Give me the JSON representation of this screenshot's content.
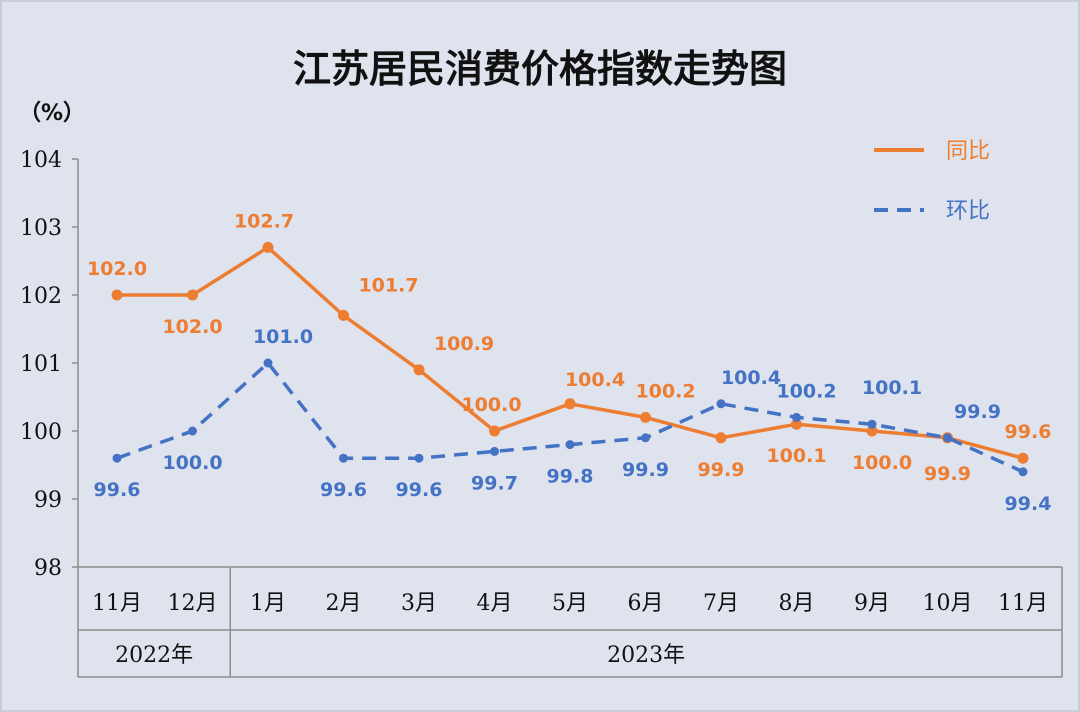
{
  "chart_data": {
    "type": "line",
    "title": "江苏居民消费价格指数走势图",
    "unit_label": "（%）",
    "categories": [
      "11月",
      "12月",
      "1月",
      "2月",
      "3月",
      "4月",
      "5月",
      "6月",
      "7月",
      "8月",
      "9月",
      "10月",
      "11月"
    ],
    "year_groups": [
      {
        "label": "2022年",
        "count": 2
      },
      {
        "label": "2023年",
        "count": 11
      }
    ],
    "ylim": [
      98,
      104
    ],
    "yticks": [
      98,
      99,
      100,
      101,
      102,
      103,
      104
    ],
    "grid": false,
    "legend_position": "top-right",
    "series": [
      {
        "name": "同比",
        "color": "#ed7d31",
        "style": "solid",
        "values": [
          102.0,
          102.0,
          102.7,
          101.7,
          100.9,
          100.0,
          100.4,
          100.2,
          99.9,
          100.1,
          100.0,
          99.9,
          99.6
        ],
        "labels": [
          "102.0",
          "102.0",
          "102.7",
          "101.7",
          "100.9",
          "100.0",
          "100.4",
          "100.2",
          "99.9",
          "100.1",
          "100.0",
          "99.9",
          "99.6"
        ]
      },
      {
        "name": "环比",
        "color": "#4472c4",
        "style": "dashed",
        "values": [
          99.6,
          100.0,
          101.0,
          99.6,
          99.6,
          99.7,
          99.8,
          99.9,
          100.4,
          100.2,
          100.1,
          99.9,
          99.4
        ],
        "labels": [
          "99.6",
          "100.0",
          "101.0",
          "99.6",
          "99.6",
          "99.7",
          "99.8",
          "99.9",
          "100.4",
          "100.2",
          "100.1",
          "99.9",
          "99.4"
        ]
      }
    ]
  }
}
